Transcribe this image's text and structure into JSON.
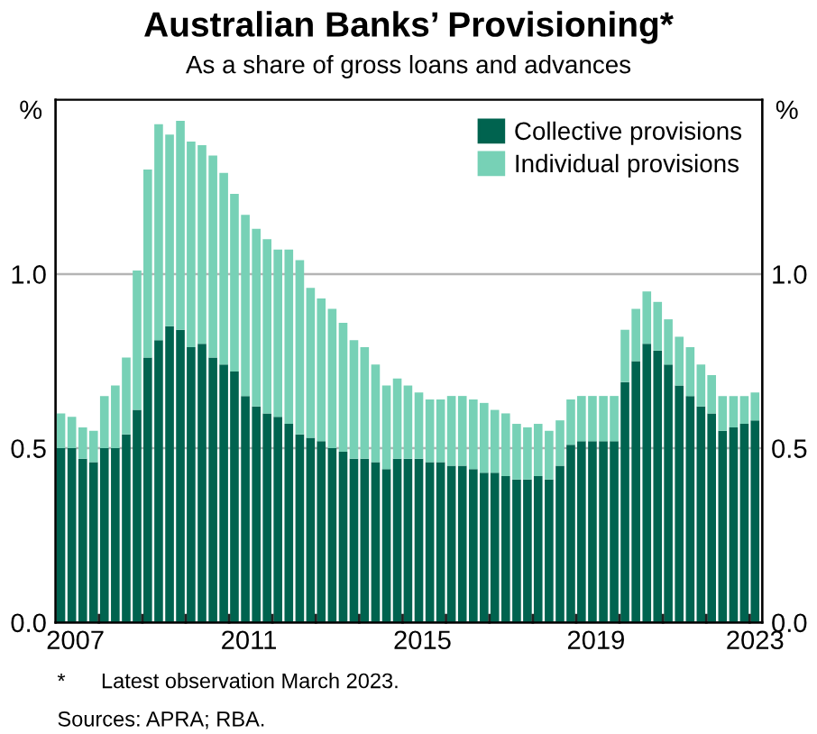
{
  "chart_data": {
    "type": "bar",
    "stacked": true,
    "title": "Australian Banks’ Provisioning*",
    "subtitle": "As a share of gross loans and advances",
    "ylabel": "%",
    "y2label": "%",
    "x": [
      "2007-03",
      "2007-06",
      "2007-09",
      "2007-12",
      "2008-03",
      "2008-06",
      "2008-09",
      "2008-12",
      "2009-03",
      "2009-06",
      "2009-09",
      "2009-12",
      "2010-03",
      "2010-06",
      "2010-09",
      "2010-12",
      "2011-03",
      "2011-06",
      "2011-09",
      "2011-12",
      "2012-03",
      "2012-06",
      "2012-09",
      "2012-12",
      "2013-03",
      "2013-06",
      "2013-09",
      "2013-12",
      "2014-03",
      "2014-06",
      "2014-09",
      "2014-12",
      "2015-03",
      "2015-06",
      "2015-09",
      "2015-12",
      "2016-03",
      "2016-06",
      "2016-09",
      "2016-12",
      "2017-03",
      "2017-06",
      "2017-09",
      "2017-12",
      "2018-03",
      "2018-06",
      "2018-09",
      "2018-12",
      "2019-03",
      "2019-06",
      "2019-09",
      "2019-12",
      "2020-03",
      "2020-06",
      "2020-09",
      "2020-12",
      "2021-03",
      "2021-06",
      "2021-09",
      "2021-12",
      "2022-03",
      "2022-06",
      "2022-09",
      "2022-12",
      "2023-03"
    ],
    "series": [
      {
        "name": "Collective provisions",
        "color": "#00634f",
        "values": [
          0.5,
          0.5,
          0.47,
          0.46,
          0.5,
          0.5,
          0.54,
          0.61,
          0.76,
          0.81,
          0.85,
          0.84,
          0.79,
          0.8,
          0.76,
          0.74,
          0.72,
          0.65,
          0.62,
          0.6,
          0.59,
          0.57,
          0.54,
          0.53,
          0.52,
          0.5,
          0.49,
          0.47,
          0.47,
          0.46,
          0.44,
          0.47,
          0.47,
          0.47,
          0.46,
          0.46,
          0.45,
          0.45,
          0.44,
          0.43,
          0.43,
          0.42,
          0.41,
          0.41,
          0.42,
          0.41,
          0.45,
          0.51,
          0.52,
          0.52,
          0.52,
          0.52,
          0.69,
          0.75,
          0.8,
          0.78,
          0.74,
          0.68,
          0.65,
          0.62,
          0.6,
          0.55,
          0.56,
          0.57,
          0.58
        ]
      },
      {
        "name": "Individual provisions",
        "color": "#77d1b6",
        "values": [
          0.1,
          0.09,
          0.09,
          0.09,
          0.15,
          0.18,
          0.22,
          0.4,
          0.54,
          0.62,
          0.55,
          0.6,
          0.59,
          0.57,
          0.58,
          0.55,
          0.51,
          0.52,
          0.51,
          0.5,
          0.48,
          0.5,
          0.5,
          0.43,
          0.41,
          0.4,
          0.37,
          0.34,
          0.32,
          0.28,
          0.24,
          0.23,
          0.21,
          0.19,
          0.18,
          0.18,
          0.2,
          0.2,
          0.2,
          0.2,
          0.18,
          0.18,
          0.16,
          0.15,
          0.15,
          0.14,
          0.13,
          0.13,
          0.13,
          0.13,
          0.13,
          0.13,
          0.15,
          0.15,
          0.15,
          0.14,
          0.13,
          0.14,
          0.14,
          0.12,
          0.11,
          0.1,
          0.09,
          0.08,
          0.08
        ]
      }
    ],
    "xlim": [
      "2007-01-15",
      "2023-05-01"
    ],
    "xticks": [
      {
        "value": "2007-07-01",
        "label": "2007"
      },
      {
        "value": "2011-07-01",
        "label": "2011"
      },
      {
        "value": "2015-07-01",
        "label": "2015"
      },
      {
        "value": "2019-07-01",
        "label": "2019"
      },
      {
        "value": "2023-03-01",
        "label": "2023"
      },
      {
        "value": "2008-01-15",
        "label": null
      },
      {
        "value": "2009-01-15",
        "label": null
      },
      {
        "value": "2010-01-15",
        "label": null
      },
      {
        "value": "2011-01-15",
        "label": null
      },
      {
        "value": "2012-01-15",
        "label": null
      },
      {
        "value": "2013-01-15",
        "label": null
      },
      {
        "value": "2014-01-15",
        "label": null
      },
      {
        "value": "2015-01-15",
        "label": null
      },
      {
        "value": "2016-01-15",
        "label": null
      },
      {
        "value": "2017-01-15",
        "label": null
      },
      {
        "value": "2018-01-15",
        "label": null
      },
      {
        "value": "2019-01-15",
        "label": null
      },
      {
        "value": "2020-01-15",
        "label": null
      },
      {
        "value": "2021-01-15",
        "label": null
      },
      {
        "value": "2022-01-15",
        "label": null
      },
      {
        "value": "2023-01-15",
        "label": null
      }
    ],
    "ylim": [
      0,
      1.5
    ],
    "yticks": [
      {
        "value": 0,
        "label": "0.0"
      },
      {
        "value": 0.5,
        "label": "0.5"
      },
      {
        "value": 1.0,
        "label": "1.0"
      }
    ],
    "y2lim": [
      0,
      1.5
    ],
    "y2ticks": [
      {
        "value": 0,
        "label": "0.0"
      },
      {
        "value": 0.5,
        "label": "0.5"
      },
      {
        "value": 1.0,
        "label": "1.0"
      }
    ],
    "grid": "y",
    "legend": "top right",
    "annotations": [
      "*      Latest observation March 2023.",
      "Sources: APRA; RBA."
    ]
  }
}
